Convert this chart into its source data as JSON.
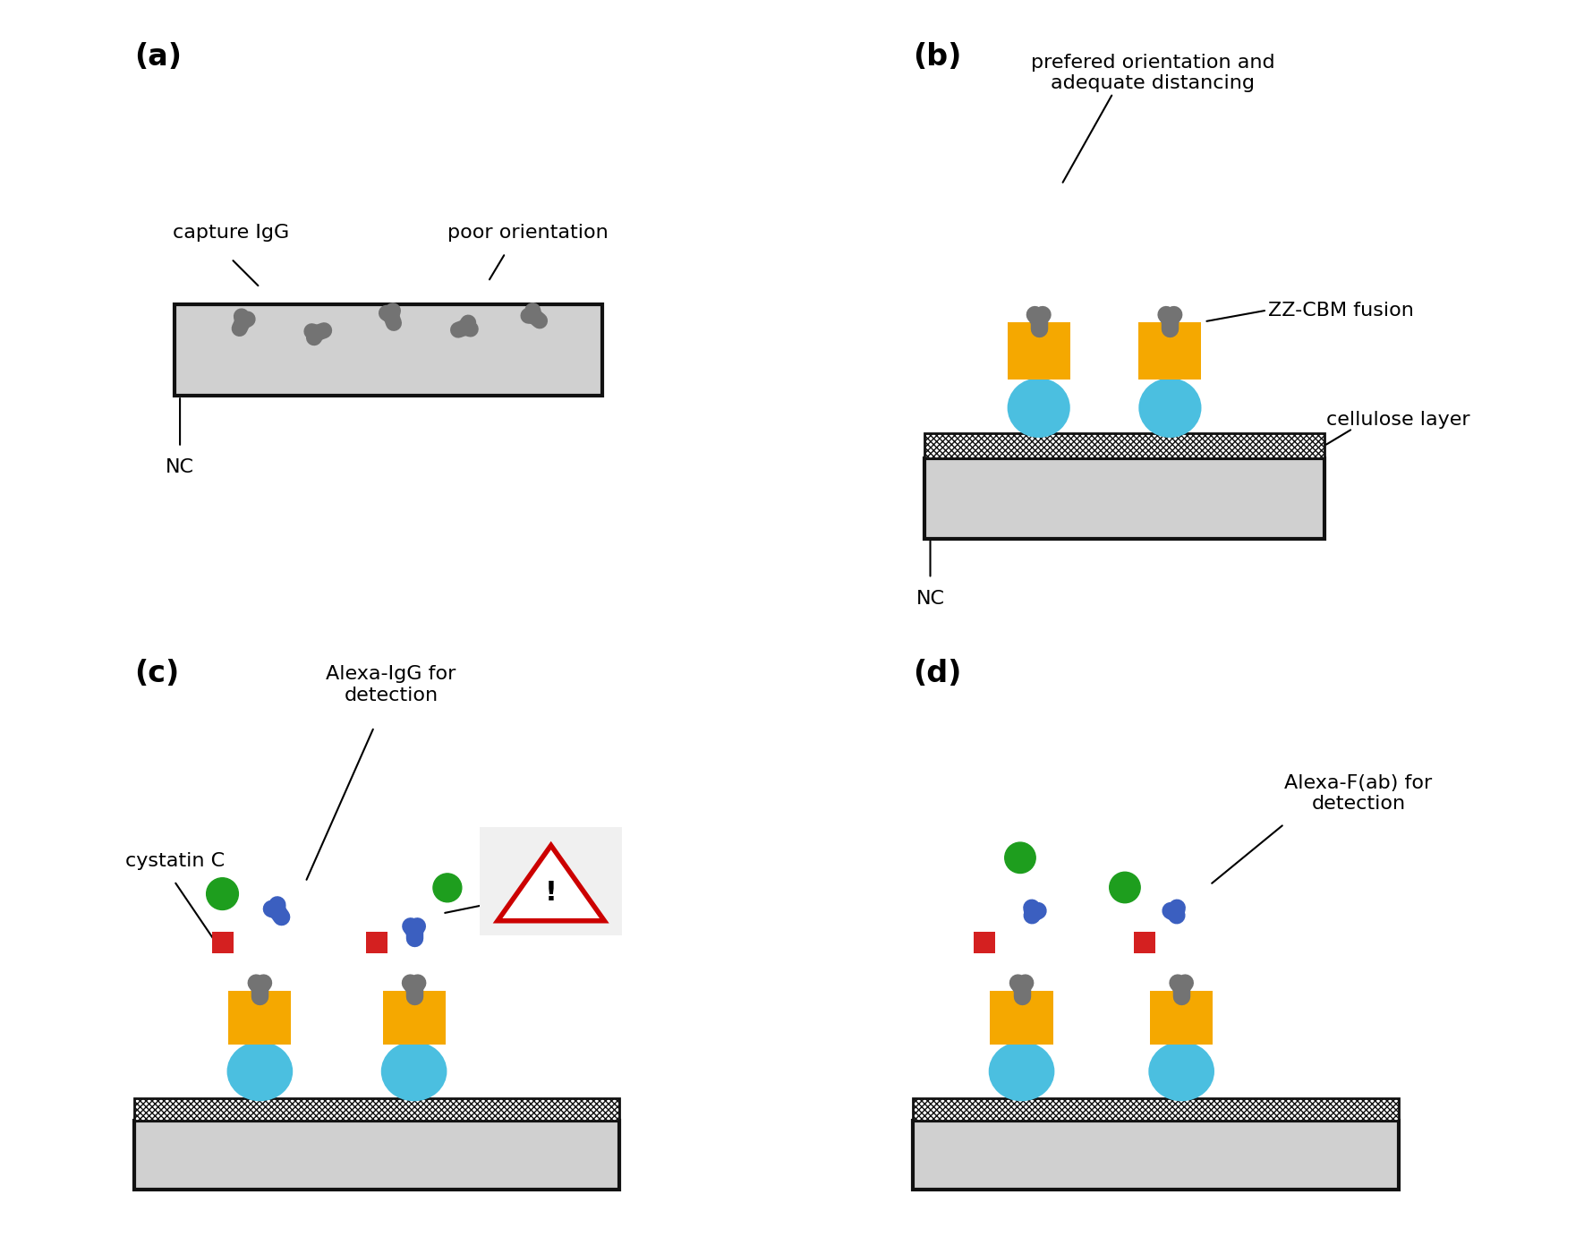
{
  "background_color": "#ffffff",
  "panel_label_fontsize": 24,
  "annotation_fontsize": 16,
  "colors": {
    "gray_antibody": "#737373",
    "gold_box": "#F5A800",
    "cyan_ball": "#4BBFE0",
    "blue_antibody": "#3B5FC0",
    "green_dot": "#1E9E1E",
    "red_square": "#D42020",
    "light_gray_bg": "#D0D0D0",
    "dark_outline": "#111111",
    "warning_red": "#CC0000"
  },
  "panel_labels": [
    "(a)",
    "(b)",
    "(c)",
    "(d)"
  ],
  "annotations": {
    "a": {
      "capture_IgG": "capture IgG",
      "poor_orientation": "poor orientation",
      "NC": "NC"
    },
    "b": {
      "preferred": "prefered orientation and\nadequate distancing",
      "ZZ_CBM": "ZZ-CBM fusion",
      "cellulose": "cellulose layer",
      "NC": "NC"
    },
    "c": {
      "alexa_IgG": "Alexa-IgG for\ndetection",
      "cystatin_C": "cystatin C"
    },
    "d": {
      "alexa_fab": "Alexa-F(ab) for\ndetection"
    }
  }
}
